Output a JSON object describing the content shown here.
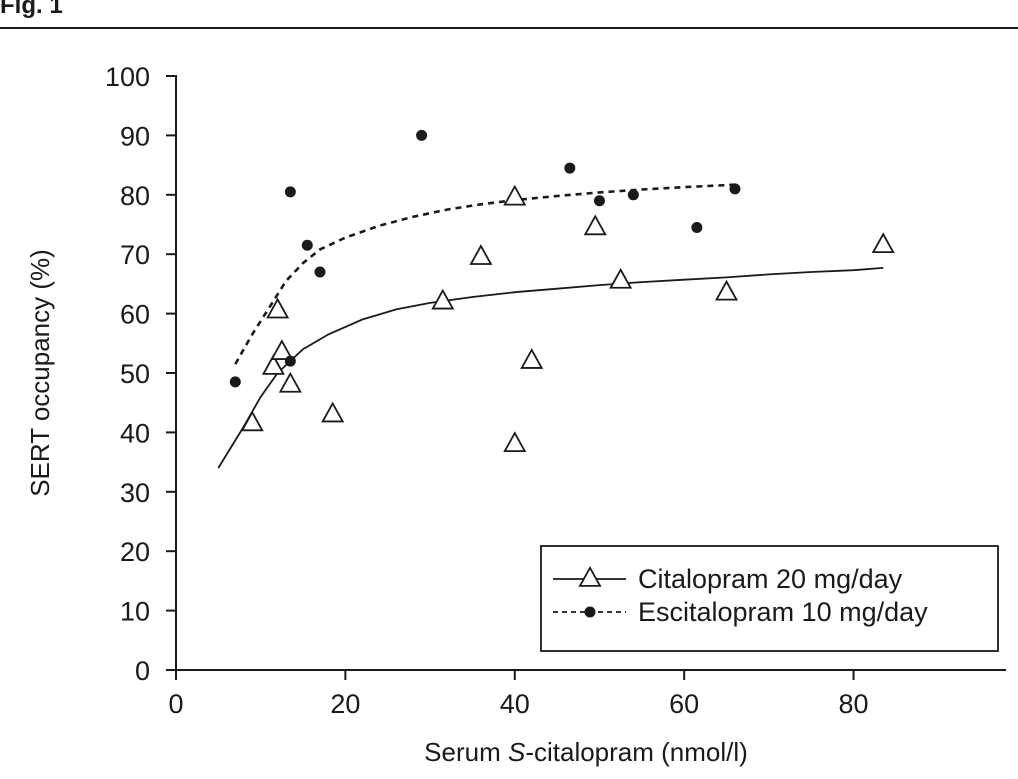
{
  "figure": {
    "label": "Fig. 1"
  },
  "chart_data": {
    "type": "scatter",
    "xlabel_prefix": "Serum ",
    "xlabel_italic": "S",
    "xlabel_suffix": "-citalopram (nmol/l)",
    "ylabel": "SERT occupancy (%)",
    "xlim": [
      0,
      98
    ],
    "ylim": [
      0,
      100
    ],
    "xticks": [
      0,
      20,
      40,
      60,
      80
    ],
    "yticks": [
      0,
      10,
      20,
      30,
      40,
      50,
      60,
      70,
      80,
      90,
      100
    ],
    "grid": false,
    "legend_position": "bottom-right",
    "series": [
      {
        "name": "Citalopram 20 mg/day",
        "marker": "open-triangle",
        "line": "solid",
        "points": [
          [
            9,
            41.5
          ],
          [
            11.5,
            51
          ],
          [
            12,
            60.5
          ],
          [
            12.5,
            53.5
          ],
          [
            13.5,
            48
          ],
          [
            18.5,
            43
          ],
          [
            31.5,
            62
          ],
          [
            36,
            69.5
          ],
          [
            40,
            38
          ],
          [
            40,
            79.5
          ],
          [
            42,
            52
          ],
          [
            49.5,
            74.5
          ],
          [
            52.5,
            65.5
          ],
          [
            65,
            63.5
          ],
          [
            83.5,
            71.5
          ]
        ],
        "fit": [
          [
            5,
            34
          ],
          [
            8,
            41
          ],
          [
            10,
            46
          ],
          [
            12,
            50
          ],
          [
            15,
            54
          ],
          [
            18,
            56.5
          ],
          [
            22,
            59
          ],
          [
            26,
            60.7
          ],
          [
            30,
            61.8
          ],
          [
            35,
            62.8
          ],
          [
            40,
            63.6
          ],
          [
            45,
            64.2
          ],
          [
            50,
            64.8
          ],
          [
            55,
            65.3
          ],
          [
            60,
            65.7
          ],
          [
            65,
            66.1
          ],
          [
            70,
            66.6
          ],
          [
            75,
            67
          ],
          [
            80,
            67.3
          ],
          [
            83.5,
            67.7
          ]
        ]
      },
      {
        "name": "Escitalopram 10 mg/day",
        "marker": "filled-circle",
        "line": "dashed",
        "points": [
          [
            7,
            48.5
          ],
          [
            13.5,
            80.5
          ],
          [
            13.5,
            52
          ],
          [
            15.5,
            71.5
          ],
          [
            17,
            67
          ],
          [
            29,
            90
          ],
          [
            46.5,
            84.5
          ],
          [
            50,
            79
          ],
          [
            54,
            80
          ],
          [
            61.5,
            74.5
          ],
          [
            66,
            81
          ]
        ],
        "fit": [
          [
            7,
            51.5
          ],
          [
            9,
            56.5
          ],
          [
            11,
            61
          ],
          [
            13,
            65.5
          ],
          [
            15,
            68.5
          ],
          [
            17,
            70.8
          ],
          [
            20,
            72.8
          ],
          [
            24,
            74.8
          ],
          [
            28,
            76.3
          ],
          [
            32,
            77.5
          ],
          [
            36,
            78.4
          ],
          [
            40,
            79.1
          ],
          [
            45,
            79.8
          ],
          [
            50,
            80.4
          ],
          [
            55,
            80.9
          ],
          [
            60,
            81.3
          ],
          [
            66,
            81.7
          ]
        ]
      }
    ]
  }
}
